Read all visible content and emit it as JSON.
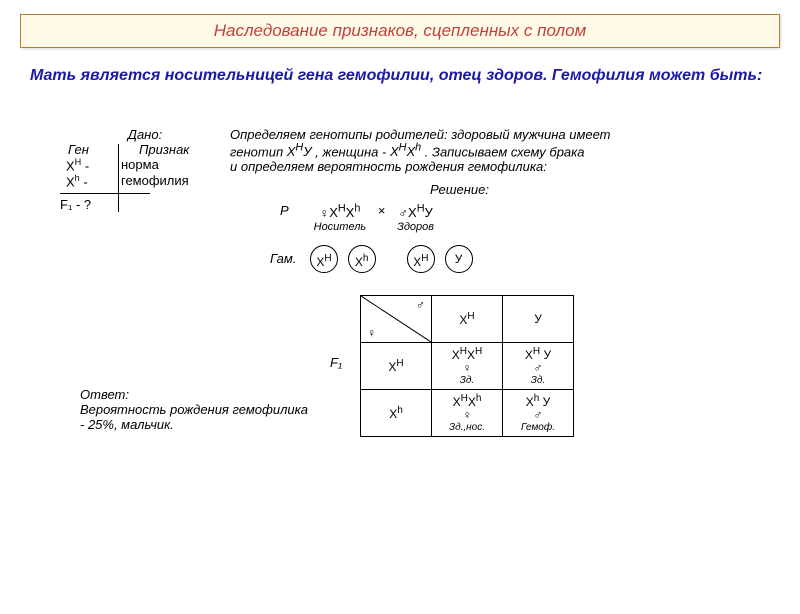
{
  "title": "Наследование признаков, сцепленных с полом",
  "intro": "Мать является носительницей гена гемофилии, отец здоров. Гемофилия может быть:",
  "given": {
    "label": "Дано:",
    "gene_col": "Ген",
    "trait_col": "Признак",
    "row1_gene": "X",
    "row1_sup": "H",
    "row1_dash": " - ",
    "row1_trait": "норма",
    "row2_gene": "X",
    "row2_sup": "h",
    "row2_dash": " - ",
    "row2_trait": "гемофилия",
    "find": "F₁ - ?"
  },
  "explain": {
    "line1": "Определяем генотипы родителей: здоровый мужчина имеет",
    "line2a": "генотип ",
    "male_geno_html": "X<sup>H</sup>У",
    "line2b": ", женщина - ",
    "female_geno_html": "X<sup>H</sup>X<sup>h</sup>",
    "line2c": ". Записываем схему брака",
    "line3": "и определяем вероятность рождения гемофилика:"
  },
  "solution_label": "Решение:",
  "p": {
    "label": "P",
    "female_sym": "♀",
    "female_geno": "X<sup>H</sup>X<sup>h</sup>",
    "female_sub": "Носитель",
    "cross": "×",
    "male_sym": "♂",
    "male_geno": "X<sup>H</sup>У",
    "male_sub": "Здоров"
  },
  "gametes": {
    "label": "Гам.",
    "g1": "X<sup>H</sup>",
    "g2": "X<sup>h</sup>",
    "g3": "X<sup>H</sup>",
    "g4": "У"
  },
  "punnett": {
    "corner_m": "♂",
    "corner_f": "♀",
    "col1": "X<sup>H</sup>",
    "col2": "У",
    "row1": "X<sup>H</sup>",
    "row2": "X<sup>h</sup>",
    "c11_main": "X<sup>H</sup>X<sup>H</sup>",
    "c11_sym": "♀",
    "c11_sub": "Зд.",
    "c12_main": "X<sup>H</sup> У",
    "c12_sym": "♂",
    "c12_sub": "Зд.",
    "c21_main": "X<sup>H</sup>X<sup>h</sup>",
    "c21_sym": "♀",
    "c21_sub": "Зд.,нос.",
    "c22_main": "X<sup>h</sup> У",
    "c22_sym": "♂",
    "c22_sub": "Гемоф."
  },
  "f1_label": "F₁",
  "answer": {
    "head": "Ответ:",
    "line1": "Вероятность рождения гемофилика",
    "line2": " - 25%, мальчик."
  },
  "colors": {
    "title_text": "#c04040",
    "title_bg": "#fffbe6",
    "title_border": "#b08030",
    "intro": "#1a1aa5",
    "body": "#000000",
    "page_bg": "#ffffff"
  }
}
